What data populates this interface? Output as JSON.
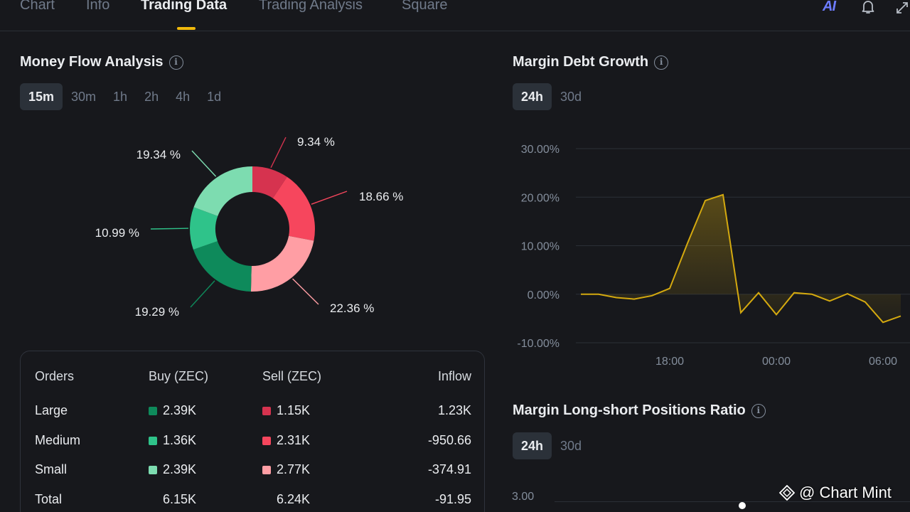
{
  "tabs": [
    {
      "label": "Chart",
      "active": false
    },
    {
      "label": "Info",
      "active": false
    },
    {
      "label": "Trading Data",
      "active": true
    },
    {
      "label": "Trading Analysis",
      "active": false
    },
    {
      "label": "Square",
      "active": false
    }
  ],
  "top_icons": {
    "ai": "AI",
    "bell": "bell-icon",
    "expand": "expand-icon"
  },
  "money_flow": {
    "title": "Money Flow Analysis",
    "periods": [
      "15m",
      "30m",
      "1h",
      "2h",
      "4h",
      "1d"
    ],
    "active_period": "15m"
  },
  "margin_debt": {
    "title": "Margin Debt Growth",
    "periods": [
      "24h",
      "30d"
    ],
    "active_period": "24h"
  },
  "long_short": {
    "title": "Margin Long-short Positions Ratio",
    "periods": [
      "24h",
      "30d"
    ],
    "active_period": "24h",
    "first_tick": "3.00"
  },
  "orders_table": {
    "headers": [
      "Orders",
      "Buy (ZEC)",
      "Sell (ZEC)",
      "Inflow"
    ],
    "rows": [
      {
        "label": "Large",
        "buy": "2.39K",
        "sell": "1.15K",
        "inflow": "1.23K",
        "buy_color": "#0e8a5b",
        "sell_color": "#d6334f"
      },
      {
        "label": "Medium",
        "buy": "1.36K",
        "sell": "2.31K",
        "inflow": "-950.66",
        "buy_color": "#2fc38a",
        "sell_color": "#f6465d"
      },
      {
        "label": "Small",
        "buy": "2.39K",
        "sell": "2.77K",
        "inflow": "-374.91",
        "buy_color": "#7ddcb0",
        "sell_color": "#ff9ea4"
      },
      {
        "label": "Total",
        "buy": "6.15K",
        "sell": "6.24K",
        "inflow": "-91.95",
        "buy_color": "",
        "sell_color": ""
      }
    ]
  },
  "colors": {
    "accent": "#f0b90b",
    "line": "#d4a90f",
    "background": "#17181c"
  },
  "watermark": "@ Chart Mint",
  "chart_data": [
    {
      "type": "pie",
      "variant": "donut",
      "title": "Money Flow Analysis",
      "slices": [
        {
          "name": "Sell Large",
          "value": 9.34,
          "label": "9.34 %",
          "color": "#d6334f"
        },
        {
          "name": "Sell Medium",
          "value": 18.66,
          "label": "18.66 %",
          "color": "#f6465d"
        },
        {
          "name": "Sell Small",
          "value": 22.36,
          "label": "22.36 %",
          "color": "#ff9ea4"
        },
        {
          "name": "Buy Large",
          "value": 19.29,
          "label": "19.29 %",
          "color": "#0e8a5b"
        },
        {
          "name": "Buy Medium",
          "value": 10.99,
          "label": "10.99 %",
          "color": "#2fc38a"
        },
        {
          "name": "Buy Small",
          "value": 19.34,
          "label": "19.34 %",
          "color": "#7ddcb0"
        }
      ]
    },
    {
      "type": "line",
      "title": "Margin Debt Growth",
      "y_ticks": [
        "30.00%",
        "20.00%",
        "10.00%",
        "0.00%",
        "-10.00%"
      ],
      "y_tick_values": [
        30,
        20,
        10,
        0,
        -10
      ],
      "ylim": [
        -10,
        30
      ],
      "x_ticks": [
        "18:00",
        "00:00",
        "06:00"
      ],
      "x_tick_index": [
        5,
        11,
        17
      ],
      "series": [
        {
          "name": "Margin Debt Growth",
          "values": [
            0,
            0,
            -0.7,
            -1.0,
            -0.3,
            1.2,
            10.5,
            19.3,
            20.5,
            -3.8,
            0.3,
            -4.2,
            0.3,
            0,
            -1.4,
            0.1,
            -1.6,
            -5.8,
            -4.5
          ]
        }
      ]
    }
  ]
}
